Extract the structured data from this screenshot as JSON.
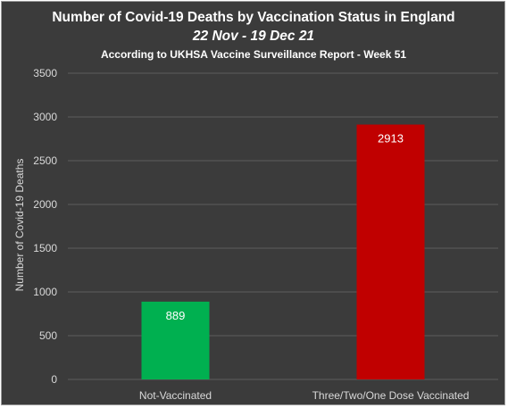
{
  "chart_data": {
    "type": "bar",
    "title": "Number of Covid-19 Deaths by Vaccination Status in England",
    "subtitle": "22 Nov - 19 Dec 21",
    "subtitle2": "According to UKHSA Vaccine Surveillance Report - Week 51",
    "ylabel": "Number of Covid-19 Deaths",
    "xlabel": "",
    "categories": [
      "Not-Vaccinated",
      "Three/Two/One Dose Vaccinated"
    ],
    "values": [
      889,
      2913
    ],
    "data_labels": [
      "889",
      "2913"
    ],
    "bar_colors": [
      "#00b050",
      "#c00000"
    ],
    "ylim": [
      0,
      3500
    ],
    "yticks": [
      0,
      500,
      1000,
      1500,
      2000,
      2500,
      3000,
      3500
    ],
    "grid": true,
    "legend": "none",
    "background": "#3b3b3b"
  }
}
